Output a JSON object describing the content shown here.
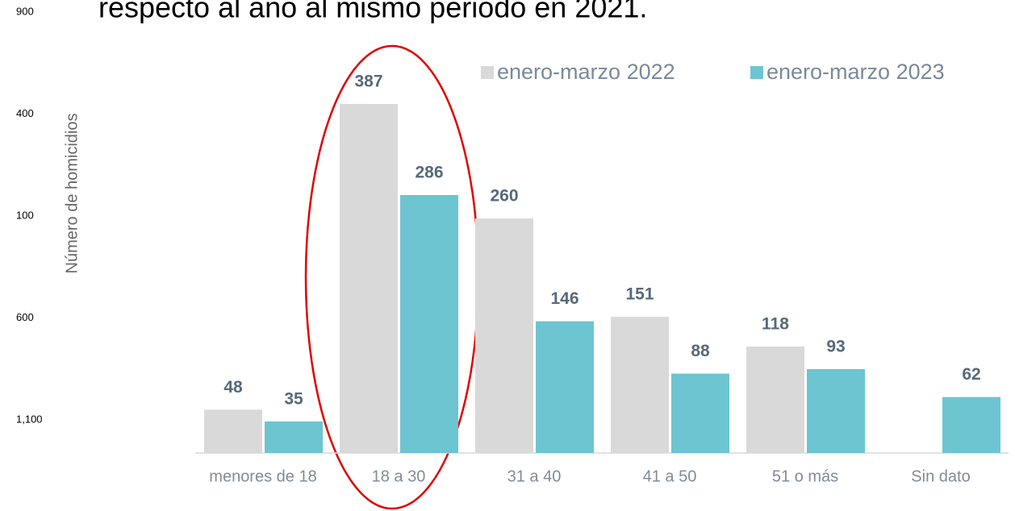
{
  "chart_data": {
    "type": "bar",
    "title": "respecto al año al mismo periodo en 2021.",
    "y_axis_label": "Número de homicidios",
    "side_labels": [
      "900",
      "400",
      "100",
      "600",
      "1,100"
    ],
    "categories": [
      "menores de 18",
      "18 a 30",
      "31 a 40",
      "41 a 50",
      "51 o más",
      "Sin dato"
    ],
    "series": [
      {
        "name": "enero-marzo 2022",
        "color": "#d9d9d9",
        "values": [
          48,
          387,
          260,
          151,
          118,
          null
        ]
      },
      {
        "name": "enero-marzo 2023",
        "color": "#6cc5d1",
        "values": [
          35,
          286,
          146,
          88,
          93,
          62
        ]
      }
    ],
    "ylim": [
      0,
      500
    ],
    "legend": "top-right"
  }
}
